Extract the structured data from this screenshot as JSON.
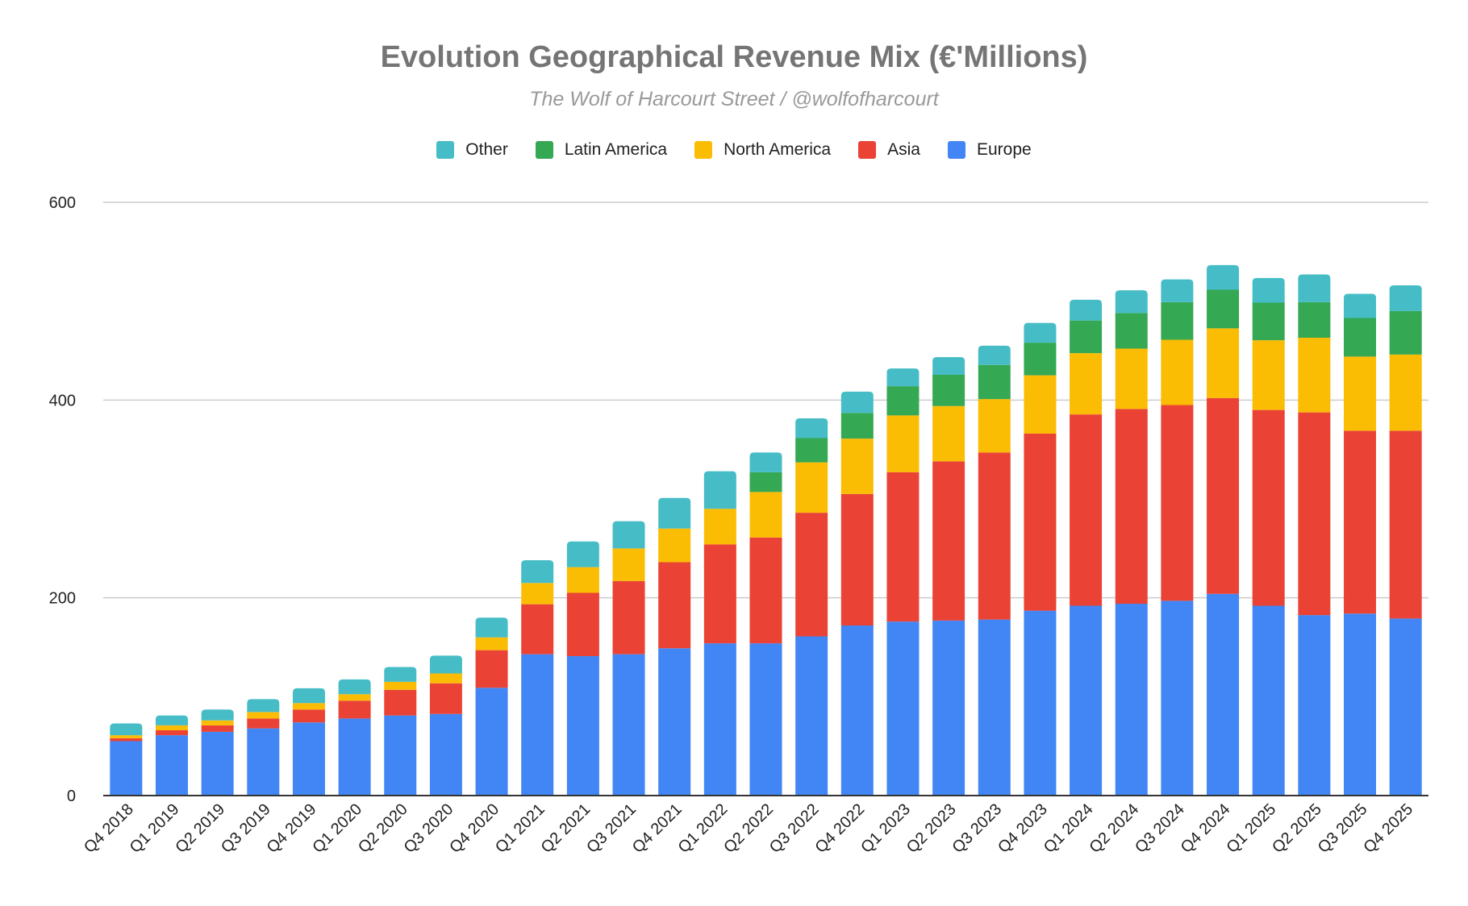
{
  "chart_data": {
    "type": "bar",
    "stacked": true,
    "title": "Evolution Geographical Revenue Mix (€'Millions)",
    "subtitle": "The Wolf of Harcourt Street / @wolfofharcourt",
    "xlabel": "",
    "ylabel": "",
    "ylim": [
      0,
      600
    ],
    "yticks": [
      0,
      200,
      400,
      600
    ],
    "grid": true,
    "legend_position": "top",
    "categories": [
      "Q4 2018",
      "Q1 2019",
      "Q2 2019",
      "Q3 2019",
      "Q4 2019",
      "Q1 2020",
      "Q2 2020",
      "Q3 2020",
      "Q4 2020",
      "Q1 2021",
      "Q2 2021",
      "Q3 2021",
      "Q4 2021",
      "Q1 2022",
      "Q2 2022",
      "Q3 2022",
      "Q4 2022",
      "Q1 2023",
      "Q2 2023",
      "Q3 2023",
      "Q4 2023",
      "Q1 2024",
      "Q2 2024",
      "Q3 2024",
      "Q4 2024",
      "Q1 2025",
      "Q2 2025",
      "Q3 2025",
      "Q4 2025"
    ],
    "series": [
      {
        "name": "Europe",
        "color": "#4285F4",
        "values": [
          55,
          61,
          64.5,
          68,
          74,
          78,
          81,
          82.5,
          109,
          143,
          141,
          143,
          149,
          154,
          154,
          161,
          172,
          176,
          177,
          178,
          187,
          192,
          194,
          197,
          204,
          192,
          182.5,
          184,
          179
        ]
      },
      {
        "name": "Asia",
        "color": "#EA4335",
        "values": [
          3,
          5,
          6.5,
          10,
          13,
          18,
          26,
          31,
          38,
          50.5,
          64,
          74,
          87,
          100,
          107,
          125,
          133,
          151,
          161,
          169,
          179,
          193.5,
          197,
          198,
          198,
          198,
          205,
          185,
          190
        ]
      },
      {
        "name": "North America",
        "color": "#FBBC04",
        "values": [
          3,
          5,
          5,
          6.5,
          6.5,
          6.5,
          8,
          10,
          13,
          21.5,
          26,
          33,
          34,
          36,
          46,
          51,
          56,
          57.5,
          56,
          54,
          59,
          62,
          61,
          66,
          70.5,
          70.5,
          75.5,
          75,
          77
        ]
      },
      {
        "name": "Latin America",
        "color": "#34A853",
        "values": [
          0,
          0,
          0,
          0,
          0,
          0,
          0,
          0,
          0,
          0,
          0,
          0,
          0,
          0,
          20,
          24.5,
          26,
          29.5,
          31.5,
          34.5,
          33,
          33,
          36,
          38,
          39,
          38,
          36,
          39,
          44
        ]
      },
      {
        "name": "Other",
        "color": "#46BDC6",
        "values": [
          12,
          10,
          11,
          13,
          15,
          15,
          15,
          18,
          20,
          23,
          26,
          27.5,
          31,
          38,
          20,
          20,
          21.5,
          18,
          18,
          19.5,
          20,
          21,
          23,
          23,
          25,
          25,
          28,
          24.5,
          26
        ]
      }
    ],
    "legend_order": [
      "Other",
      "Latin America",
      "North America",
      "Asia",
      "Europe"
    ]
  }
}
